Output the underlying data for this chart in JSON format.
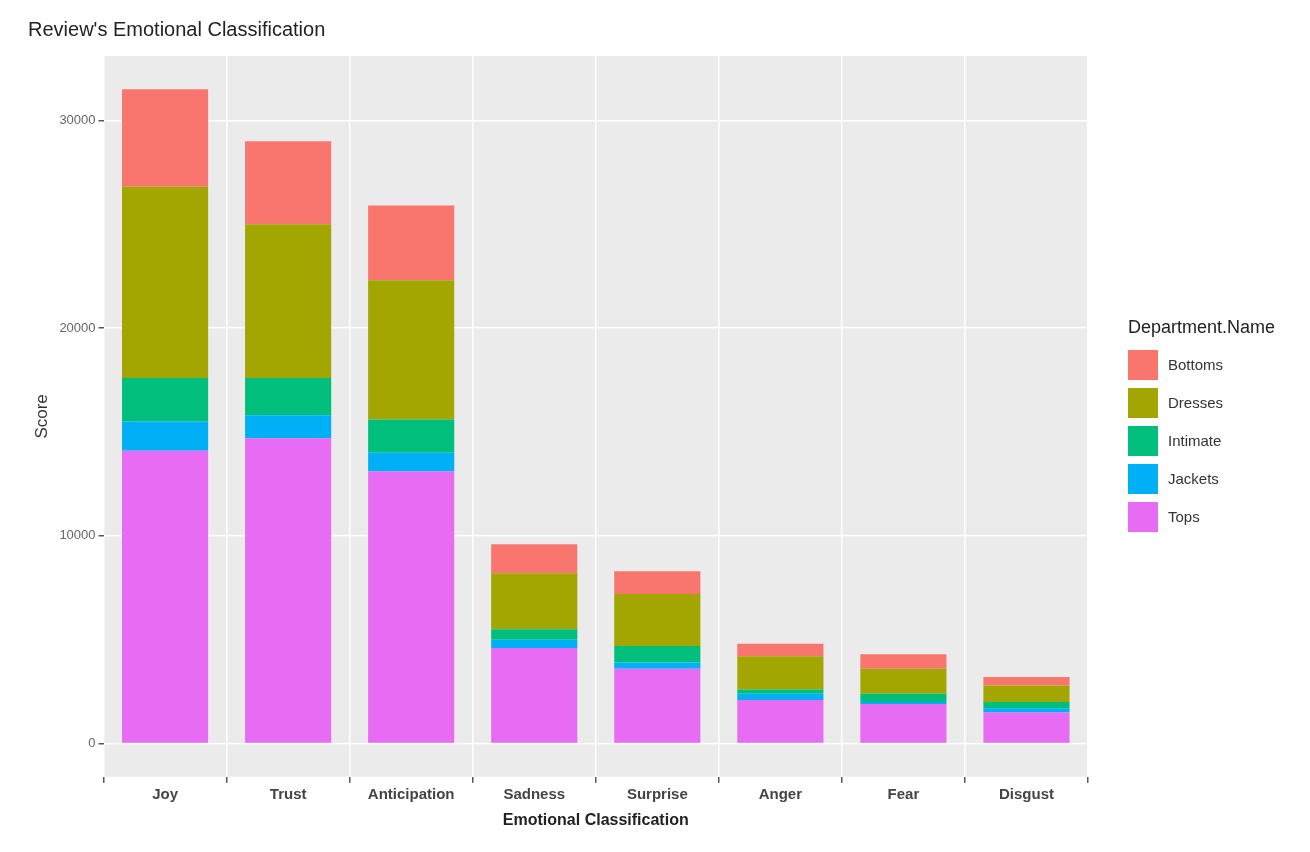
{
  "chart_data": {
    "type": "bar",
    "title": "Review's Emotional Classification",
    "xlabel": "Emotional Classification",
    "ylabel": "Score",
    "legend_title": "Department.Name",
    "categories": [
      "Joy",
      "Trust",
      "Anticipation",
      "Sadness",
      "Surprise",
      "Anger",
      "Fear",
      "Disgust"
    ],
    "stacked": true,
    "series": [
      {
        "name": "Tops",
        "color": "#e76bf3",
        "values": [
          14100,
          14700,
          13100,
          4600,
          3600,
          2100,
          1900,
          1500
        ]
      },
      {
        "name": "Jackets",
        "color": "#00b0f6",
        "values": [
          1400,
          1100,
          900,
          400,
          300,
          300,
          100,
          200
        ]
      },
      {
        "name": "Intimate",
        "color": "#00bf7d",
        "values": [
          2100,
          1800,
          1600,
          500,
          800,
          200,
          400,
          300
        ]
      },
      {
        "name": "Dresses",
        "color": "#a3a500",
        "values": [
          9200,
          7400,
          6700,
          2700,
          2500,
          1600,
          1200,
          800
        ]
      },
      {
        "name": "Bottoms",
        "color": "#f8766d",
        "values": [
          4700,
          4000,
          3600,
          1400,
          1100,
          600,
          700,
          400
        ]
      }
    ],
    "ylim": [
      -1600,
      33100
    ],
    "yticks": [
      0,
      10000,
      20000,
      30000
    ],
    "grid": true,
    "legend": "right"
  }
}
